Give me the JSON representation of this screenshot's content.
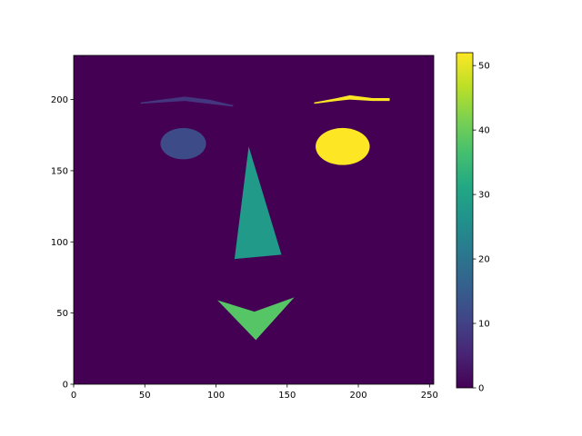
{
  "chart_data": {
    "type": "heatmap",
    "title": "",
    "xlabel": "",
    "ylabel": "",
    "xlim": [
      0,
      253
    ],
    "ylim": [
      0,
      231
    ],
    "xticks": [
      0,
      50,
      100,
      150,
      200,
      250
    ],
    "yticks": [
      0,
      50,
      100,
      150,
      200
    ],
    "background_value": 0,
    "colormap": "viridis",
    "colorbar": {
      "range": [
        0,
        52
      ],
      "ticks": [
        0,
        10,
        20,
        30,
        40,
        50
      ]
    },
    "regions": [
      {
        "name": "left-eyebrow",
        "value": 8,
        "shape": "polygon",
        "points": [
          [
            47,
            198
          ],
          [
            62,
            200
          ],
          [
            78,
            202
          ],
          [
            95,
            200
          ],
          [
            112,
            196
          ],
          [
            112,
            195
          ],
          [
            95,
            197
          ],
          [
            78,
            199
          ],
          [
            62,
            198
          ],
          [
            47,
            197
          ]
        ]
      },
      {
        "name": "right-eyebrow",
        "value": 52,
        "shape": "polygon",
        "points": [
          [
            169,
            198
          ],
          [
            185,
            201
          ],
          [
            194,
            203
          ],
          [
            210,
            201
          ],
          [
            222,
            201
          ],
          [
            222,
            199
          ],
          [
            210,
            199
          ],
          [
            194,
            200
          ],
          [
            185,
            199
          ],
          [
            169,
            197
          ]
        ]
      },
      {
        "name": "left-eye",
        "value": 12,
        "shape": "ellipse",
        "center": [
          77,
          169
        ],
        "radii": [
          16,
          11
        ]
      },
      {
        "name": "right-eye",
        "value": 52,
        "shape": "ellipse",
        "center": [
          189,
          167
        ],
        "radii": [
          19,
          13
        ]
      },
      {
        "name": "nose",
        "value": 28,
        "shape": "polygon",
        "points": [
          [
            123,
            167
          ],
          [
            146,
            91
          ],
          [
            113,
            88
          ]
        ]
      },
      {
        "name": "mouth",
        "value": 38,
        "shape": "polygon",
        "points": [
          [
            101,
            59
          ],
          [
            127,
            51
          ],
          [
            155,
            61
          ],
          [
            128,
            31
          ]
        ]
      }
    ]
  }
}
